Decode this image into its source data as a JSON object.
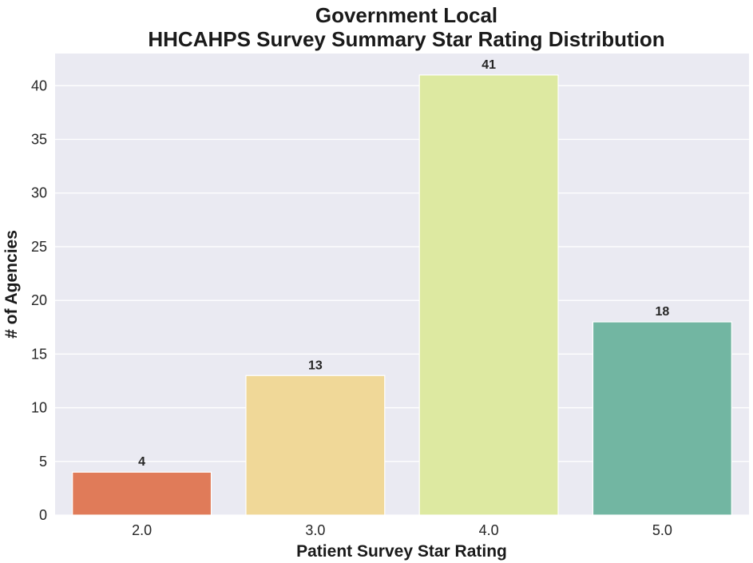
{
  "chart_data": {
    "type": "bar",
    "title_lines": [
      "Government Local",
      "HHCAHPS Survey Summary Star Rating Distribution"
    ],
    "xlabel": "Patient Survey Star Rating",
    "ylabel": "# of Agencies",
    "categories": [
      "2.0",
      "3.0",
      "4.0",
      "5.0"
    ],
    "values": [
      4,
      13,
      41,
      18
    ],
    "data_labels": [
      "4",
      "13",
      "41",
      "18"
    ],
    "colors": [
      "#e07b59",
      "#f0d898",
      "#dde9a1",
      "#72b6a2"
    ],
    "ylim": [
      0,
      43
    ],
    "yticks": [
      0,
      5,
      10,
      15,
      20,
      25,
      30,
      35,
      40
    ],
    "ytick_labels": [
      "0",
      "5",
      "10",
      "15",
      "20",
      "25",
      "30",
      "35",
      "40"
    ],
    "grid": true,
    "plot_background": "#eaeaf2",
    "grid_color": "#ffffff"
  }
}
